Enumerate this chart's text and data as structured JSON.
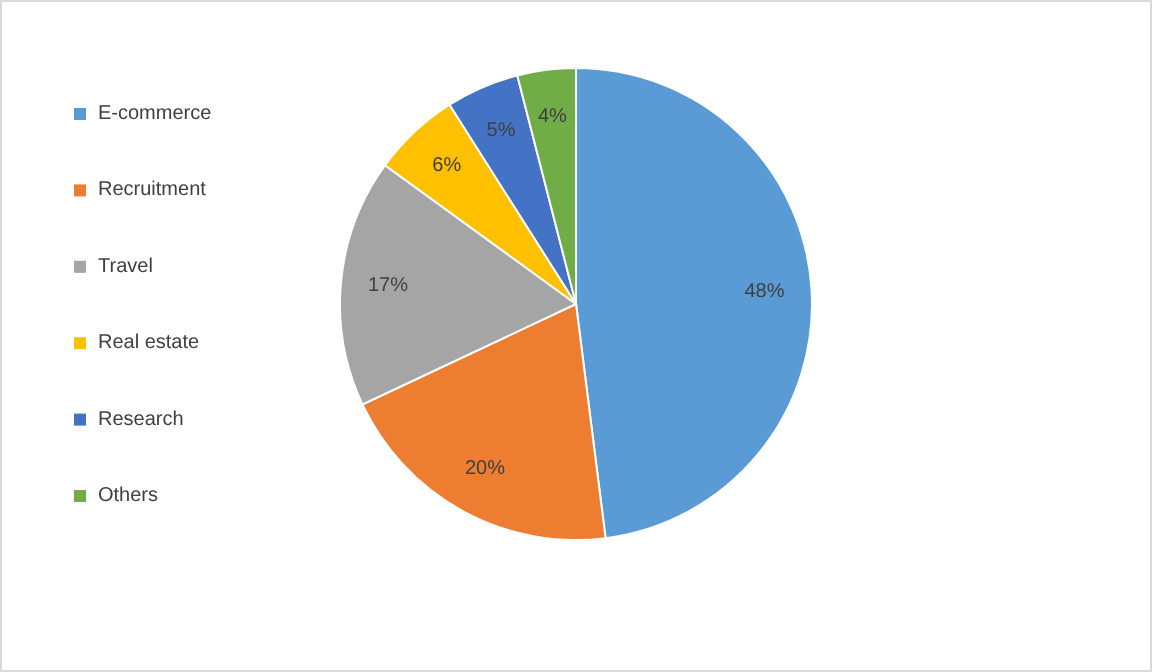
{
  "chart_data": {
    "type": "pie",
    "categories": [
      "E-commerce",
      "Recruitment",
      "Travel",
      "Real estate",
      "Research",
      "Others"
    ],
    "values": [
      48,
      20,
      17,
      6,
      5,
      4
    ],
    "colors": [
      "#5b9bd5",
      "#ed7d31",
      "#a5a5a5",
      "#ffc000",
      "#4472c4",
      "#70ad47"
    ],
    "value_labels": [
      "48%",
      "20%",
      "17%",
      "6%",
      "5%",
      "4%"
    ],
    "legend": "left"
  }
}
